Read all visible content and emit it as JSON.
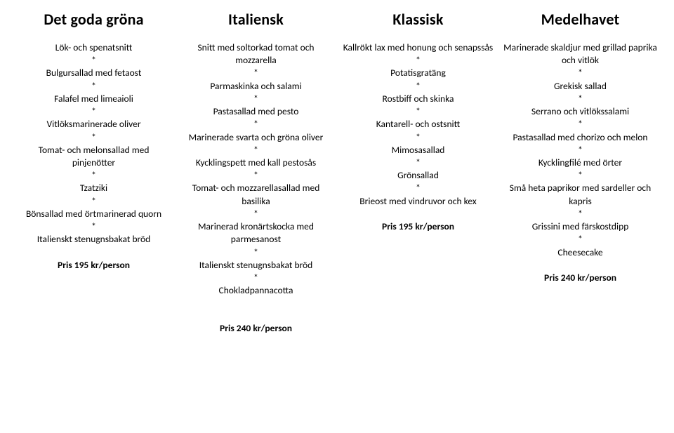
{
  "separator": "*",
  "columns": [
    {
      "title": "Det goda gröna",
      "items": [
        "Lök- och spenatsnitt",
        "Bulgursallad med fetaost",
        "Falafel med limeaioli",
        "Vitlöksmarinerade oliver",
        "Tomat- och melonsallad med pinjenötter",
        "Tzatziki",
        "Bönsallad med örtmarinerad quorn",
        "Italienskt stenugnsbakat bröd"
      ],
      "price": "Pris 195 kr/person",
      "price_below": ""
    },
    {
      "title": "Italiensk",
      "items": [
        "Snitt med soltorkad tomat och mozzarella",
        "Parmaskinka och salami",
        "Pastasallad med pesto",
        "Marinerade svarta och gröna oliver",
        "Kycklingspett med kall pestosås",
        "Tomat- och mozzarellasallad med basilika",
        "Marinerad kronärtskocka med parmesanost",
        "Italienskt stenugnsbakat bröd",
        "Chokladpannacotta"
      ],
      "price": "",
      "price_below": "Pris 240 kr/person"
    },
    {
      "title": "Klassisk",
      "items": [
        "Kallrökt lax med honung och senapssås",
        "Potatisgratäng",
        "Rostbiff och skinka",
        "Kantarell- och ostsnitt",
        "Mimosasallad",
        "Grönsallad",
        "Brieost med vindruvor och kex"
      ],
      "price": "Pris 195 kr/person",
      "price_below": ""
    },
    {
      "title": "Medelhavet",
      "items": [
        "Marinerade skaldjur med grillad paprika och vitlök",
        "Grekisk sallad",
        "Serrano och vitlökssalami",
        "Pastasallad med chorizo och melon",
        "Kycklingfilé med örter",
        "Små heta paprikor med sardeller och kapris",
        "Grissini med färskostdipp",
        "Cheesecake"
      ],
      "price": "Pris 240 kr/person",
      "price_below": ""
    }
  ]
}
